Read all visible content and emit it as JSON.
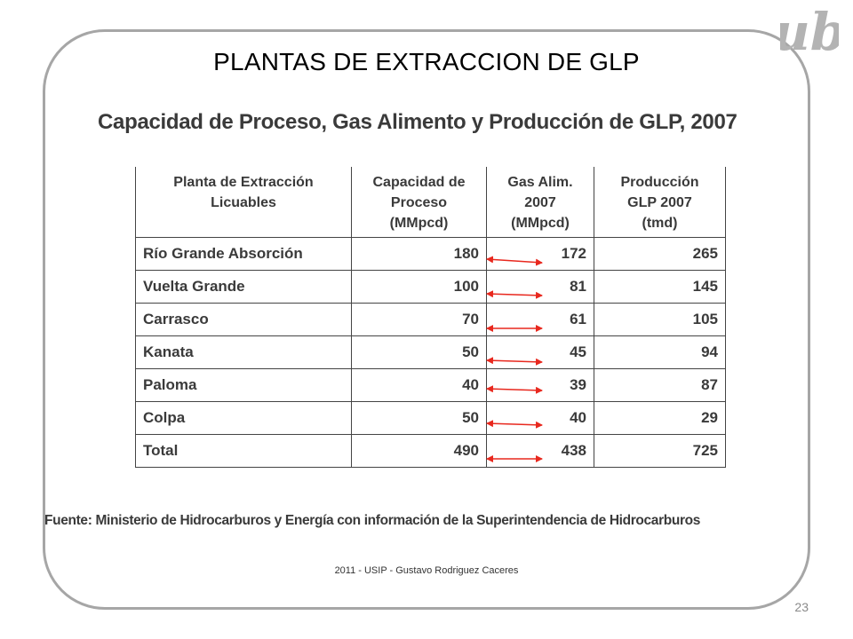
{
  "slide": {
    "title": "PLANTAS DE EXTRACCION DE GLP",
    "subtitle": "Capacidad de Proceso, Gas Alimento y Producción de GLP, 2007",
    "source": "Fuente: Ministerio de Hidrocarburos y Energía con información de la Superintendencia de Hidrocarburos",
    "footer": "2011 - USIP - Gustavo Rodriguez Caceres",
    "page_number": "23",
    "logo_icon": "gothic-ub-monogram-icon",
    "arrow_icon": "double-headed-arrow-icon",
    "arrow_color": "#e8281e"
  },
  "table": {
    "headers": [
      [
        "Planta de Extracción",
        "Licuables"
      ],
      [
        "Capacidad de",
        "Proceso",
        "(MMpcd)"
      ],
      [
        "Gas Alim.",
        "2007",
        "(MMpcd)"
      ],
      [
        "Producción",
        "GLP 2007",
        "(tmd)"
      ]
    ],
    "rows": [
      {
        "planta": "Río Grande Absorción",
        "capacidad": "180",
        "gas": "172",
        "produccion": "265"
      },
      {
        "planta": "Vuelta Grande",
        "capacidad": "100",
        "gas": "81",
        "produccion": "145"
      },
      {
        "planta": "Carrasco",
        "capacidad": "70",
        "gas": "61",
        "produccion": "105"
      },
      {
        "planta": "Kanata",
        "capacidad": "50",
        "gas": "45",
        "produccion": "94"
      },
      {
        "planta": "Paloma",
        "capacidad": "40",
        "gas": "39",
        "produccion": "87"
      },
      {
        "planta": "Colpa",
        "capacidad": "50",
        "gas": "40",
        "produccion": "29"
      },
      {
        "planta": "Total",
        "capacidad": "490",
        "gas": "438",
        "produccion": "725"
      }
    ]
  }
}
